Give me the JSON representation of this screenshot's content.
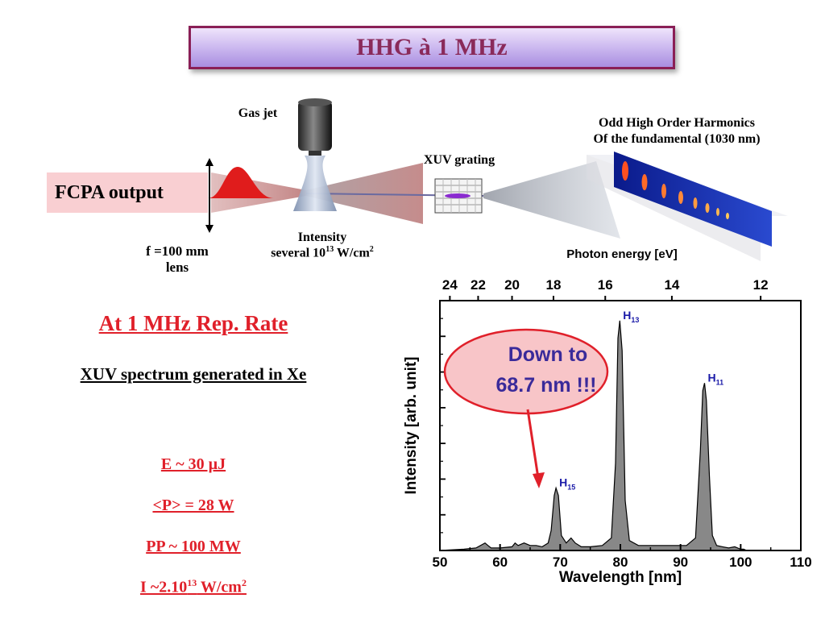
{
  "title": "HHG à 1 MHz",
  "setup": {
    "fcpa_label": "FCPA output",
    "gas_jet_label": "Gas jet",
    "lens_label_line1": "f =100 mm",
    "lens_label_line2": "lens",
    "intensity_line1": "Intensity",
    "intensity_line2_prefix": "several 10",
    "intensity_line2_exp": "13",
    "intensity_line2_suffix": " W/cm",
    "intensity_line2_sup": "2",
    "grating_label": "XUV grating",
    "harmonics_line1": "Odd High Order Harmonics",
    "harmonics_line2": "Of the fundamental (1030 nm)"
  },
  "left_text": {
    "rep_rate": "At 1 MHz Rep. Rate",
    "spectrum_line": "XUV spectrum generated in  Xe",
    "energy": "E ~ 30 µJ",
    "power": "<P> = 28 W",
    "peak_power": "PP ~ 100 MW",
    "intensity_prefix": "I ~2.10",
    "intensity_exp": "13",
    "intensity_suffix": " W/cm",
    "intensity_sup": "2"
  },
  "callout": {
    "line1": "Down to",
    "line2": "68.7 nm !!!"
  },
  "colors": {
    "title_border": "#8a1f56",
    "title_text": "#8a2a5a",
    "red": "#e0202a",
    "blue_label": "#1a1aa8",
    "callout_fill": "#f8c5c8",
    "spectrum_fill": "#888888"
  },
  "chart_data": {
    "type": "area",
    "xlabel": "Wavelength [nm]",
    "ylabel": "Intensity [arb. unit]",
    "top_axis_label": "Photon energy [eV]",
    "xlim": [
      50,
      110
    ],
    "ylim": [
      0,
      1
    ],
    "x_ticks": [
      "50",
      "60",
      "70",
      "80",
      "90",
      "100",
      "110"
    ],
    "top_ticks": [
      {
        "label": "24",
        "ev": 24
      },
      {
        "label": "22",
        "ev": 22
      },
      {
        "label": "20",
        "ev": 20
      },
      {
        "label": "18",
        "ev": 18
      },
      {
        "label": "16",
        "ev": 16
      },
      {
        "label": "14",
        "ev": 14
      },
      {
        "label": "12",
        "ev": 12
      }
    ],
    "peaks": [
      {
        "label": "H",
        "sub": "15",
        "x": 69.3,
        "y": 0.25
      },
      {
        "label": "H",
        "sub": "13",
        "x": 79.9,
        "y": 0.92
      },
      {
        "label": "H",
        "sub": "11",
        "x": 94.0,
        "y": 0.67
      }
    ],
    "series": [
      {
        "x": [
          50,
          54,
          56,
          57.5,
          58,
          58.5,
          60,
          62,
          62.5,
          63,
          64,
          65,
          66,
          67,
          68,
          68.5,
          69,
          69.3,
          69.7,
          70.2,
          71,
          71.8,
          72.5,
          73.5,
          75,
          77,
          78.5,
          79.2,
          79.6,
          79.9,
          80.3,
          80.8,
          81.5,
          83,
          86,
          89,
          91,
          92.5,
          93.3,
          93.7,
          94.0,
          94.3,
          94.8,
          95.3,
          96,
          97,
          98,
          99,
          100,
          100.5,
          101
        ],
        "y": [
          0.0,
          0.005,
          0.01,
          0.03,
          0.02,
          0.01,
          0.01,
          0.015,
          0.03,
          0.02,
          0.03,
          0.02,
          0.02,
          0.015,
          0.03,
          0.08,
          0.22,
          0.25,
          0.22,
          0.06,
          0.03,
          0.05,
          0.03,
          0.015,
          0.015,
          0.02,
          0.05,
          0.35,
          0.85,
          0.92,
          0.8,
          0.2,
          0.04,
          0.02,
          0.02,
          0.02,
          0.02,
          0.05,
          0.4,
          0.64,
          0.67,
          0.6,
          0.3,
          0.06,
          0.02,
          0.015,
          0.01,
          0.015,
          0.005,
          0.005,
          0.0
        ]
      }
    ]
  }
}
